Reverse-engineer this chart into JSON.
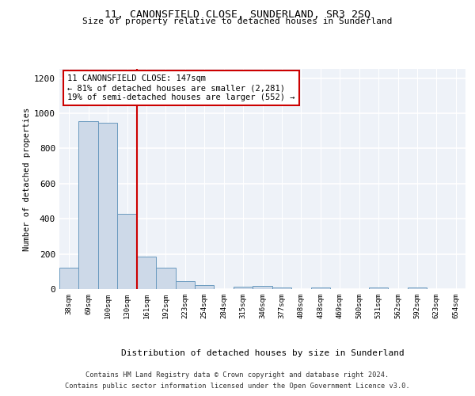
{
  "title": "11, CANONSFIELD CLOSE, SUNDERLAND, SR3 2SQ",
  "subtitle": "Size of property relative to detached houses in Sunderland",
  "xlabel": "Distribution of detached houses by size in Sunderland",
  "ylabel": "Number of detached properties",
  "bar_color": "#cdd9e8",
  "bar_edge_color": "#6a9abf",
  "vline_color": "#cc0000",
  "vline_x": 3.5,
  "annotation_box_color": "#cc0000",
  "annotation_text": "11 CANONSFIELD CLOSE: 147sqm\n← 81% of detached houses are smaller (2,281)\n19% of semi-detached houses are larger (552) →",
  "categories": [
    "38sqm",
    "69sqm",
    "100sqm",
    "130sqm",
    "161sqm",
    "192sqm",
    "223sqm",
    "254sqm",
    "284sqm",
    "315sqm",
    "346sqm",
    "377sqm",
    "408sqm",
    "438sqm",
    "469sqm",
    "500sqm",
    "531sqm",
    "562sqm",
    "592sqm",
    "623sqm",
    "654sqm"
  ],
  "values": [
    120,
    955,
    948,
    428,
    183,
    120,
    45,
    22,
    0,
    15,
    18,
    10,
    0,
    8,
    0,
    0,
    8,
    0,
    8,
    0,
    0
  ],
  "ylim": [
    0,
    1250
  ],
  "yticks": [
    0,
    200,
    400,
    600,
    800,
    1000,
    1200
  ],
  "footer_line1": "Contains HM Land Registry data © Crown copyright and database right 2024.",
  "footer_line2": "Contains public sector information licensed under the Open Government Licence v3.0.",
  "background_color": "#eef2f8",
  "fig_background": "#ffffff"
}
